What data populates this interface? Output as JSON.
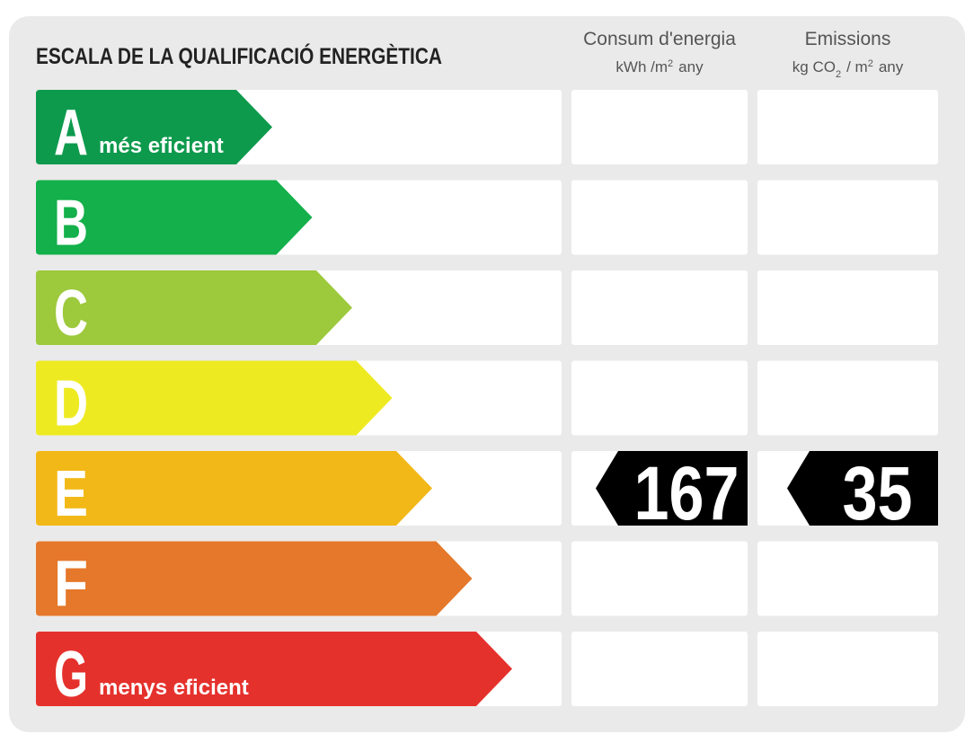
{
  "title": "ESCALA DE LA QUALIFICACIÓ ENERGÈTICA",
  "columns": [
    {
      "title": "Consum d'energia",
      "unit": [
        {
          "text": "kWh /m"
        },
        {
          "sup": "2"
        },
        {
          "text": "any"
        }
      ]
    },
    {
      "title": "Emissions",
      "unit": [
        {
          "text": "kg CO"
        },
        {
          "sub": "2"
        },
        {
          "text": "/ m"
        },
        {
          "sup": "2"
        },
        {
          "text": "any"
        }
      ]
    }
  ],
  "rows": [
    {
      "letter": "A",
      "label": "més eficient",
      "color": "#0e9a4d"
    },
    {
      "letter": "B",
      "color": "#13b04b"
    },
    {
      "letter": "C",
      "color": "#9dc93c"
    },
    {
      "letter": "D",
      "color": "#eeea22"
    },
    {
      "letter": "E",
      "color": "#f2b817"
    },
    {
      "letter": "F",
      "color": "#e5782a"
    },
    {
      "letter": "G",
      "label": "menys eficient",
      "color": "#e5312c"
    }
  ],
  "ratings": [
    {
      "column": 0,
      "letter": "E",
      "value": 167
    },
    {
      "column": 1,
      "letter": "E",
      "value": 35
    }
  ]
}
